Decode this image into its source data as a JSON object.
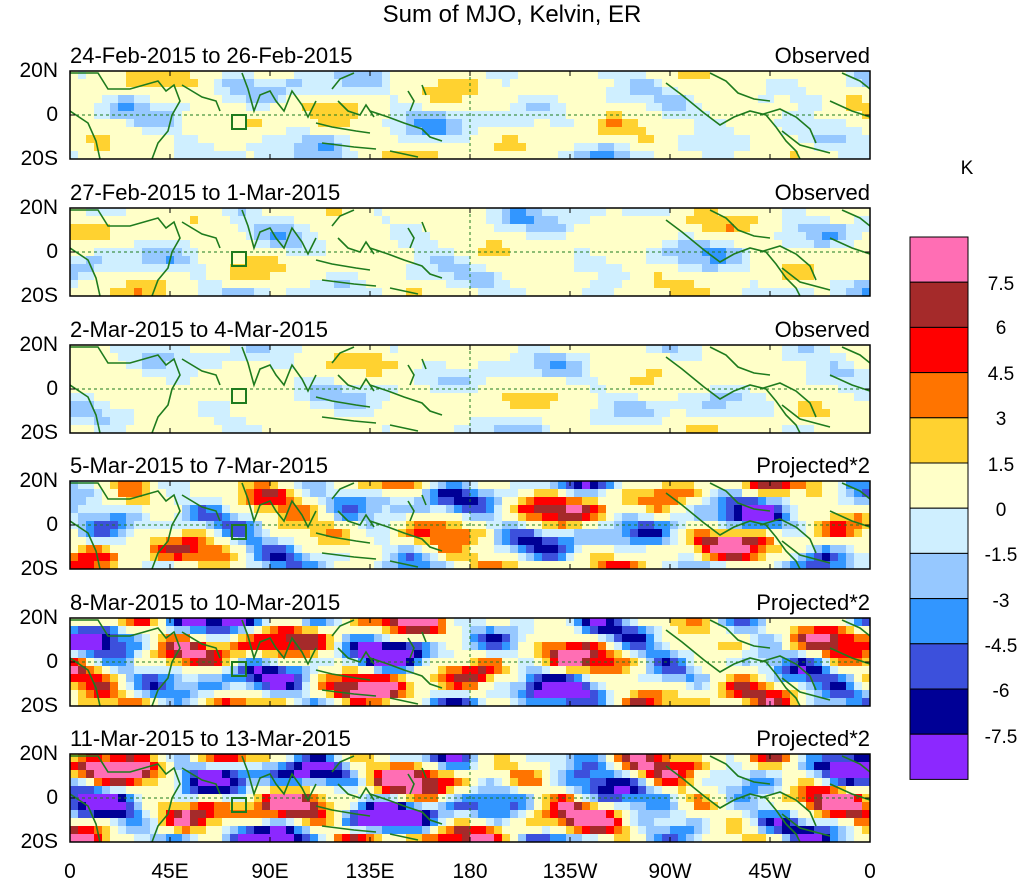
{
  "title": "Sum of MJO, Kelvin, ER",
  "panels": [
    {
      "date_range": "24-Feb-2015 to 26-Feb-2015",
      "status": "Observed",
      "intensity": 0.35,
      "seed": 3
    },
    {
      "date_range": "27-Feb-2015 to 1-Mar-2015",
      "status": "Observed",
      "intensity": 0.35,
      "seed": 7
    },
    {
      "date_range": "2-Mar-2015 to 4-Mar-2015",
      "status": "Observed",
      "intensity": 0.3,
      "seed": 11
    },
    {
      "date_range": "5-Mar-2015 to 7-Mar-2015",
      "status": "Projected*2",
      "intensity": 0.8,
      "seed": 19
    },
    {
      "date_range": "8-Mar-2015 to 10-Mar-2015",
      "status": "Projected*2",
      "intensity": 1.0,
      "seed": 23
    },
    {
      "date_range": "11-Mar-2015 to 13-Mar-2015",
      "status": "Projected*2",
      "intensity": 1.1,
      "seed": 29
    }
  ],
  "lat_labels": [
    "20N",
    "0",
    "20S"
  ],
  "lon_labels": [
    "0",
    "45E",
    "90E",
    "135E",
    "180",
    "135W",
    "90W",
    "45W",
    "0"
  ],
  "colorbar": {
    "unit": "K",
    "labels": [
      "7.5",
      "6",
      "4.5",
      "3",
      "1.5",
      "0",
      "-1.5",
      "-3",
      "-4.5",
      "-6",
      "-7.5"
    ],
    "colors": [
      "#ff6eb4",
      "#a52a2a",
      "#ff0000",
      "#ff7400",
      "#ffd230",
      "#ffffc8",
      "#cfefff",
      "#96c8ff",
      "#3296ff",
      "#3c50dc",
      "#000096",
      "#8c28ff"
    ]
  },
  "colors": {
    "coast": "#1e7b1e",
    "grid": "#1e7b1e"
  }
}
